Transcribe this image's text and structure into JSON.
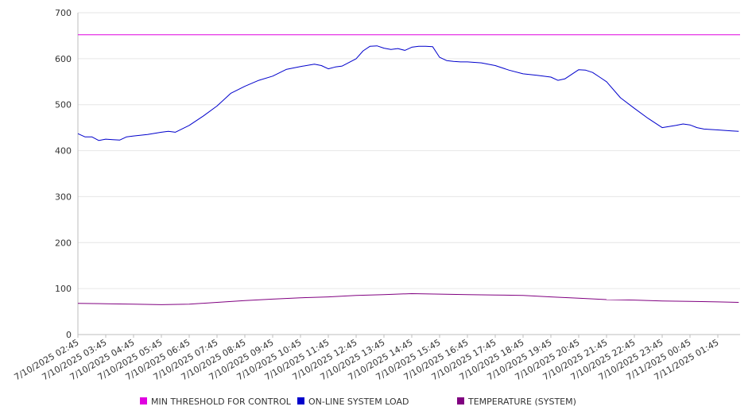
{
  "chart_data": {
    "type": "line",
    "y_ticks": [
      0,
      100,
      200,
      300,
      400,
      500,
      600,
      700
    ],
    "ylim": [
      0,
      700
    ],
    "x_tick_labels": [
      "7/10/2025 02:45",
      "7/10/2025 03:45",
      "7/10/2025 04:45",
      "7/10/2025 05:45",
      "7/10/2025 06:45",
      "7/10/2025 07:45",
      "7/10/2025 08:45",
      "7/10/2025 09:45",
      "7/10/2025 10:45",
      "7/10/2025 11:45",
      "7/10/2025 12:45",
      "7/10/2025 13:45",
      "7/10/2025 14:45",
      "7/10/2025 15:45",
      "7/10/2025 16:45",
      "7/10/2025 17:45",
      "7/10/2025 18:45",
      "7/10/2025 19:45",
      "7/10/2025 20:45",
      "7/10/2025 21:45",
      "7/10/2025 22:45",
      "7/10/2025 23:45",
      "7/11/2025 00:45",
      "7/11/2025 01:45"
    ],
    "grid": true,
    "legend_position": "bottom",
    "series": [
      {
        "name": "MIN THRESHOLD FOR CONTROL",
        "color": "#e000e0",
        "x": [
          "7/10/2025 02:45",
          "7/10/2025 03:45",
          "7/10/2025 04:45",
          "7/10/2025 05:45",
          "7/10/2025 06:45",
          "7/10/2025 07:45",
          "7/10/2025 08:45",
          "7/10/2025 09:45",
          "7/10/2025 10:45",
          "7/10/2025 11:45",
          "7/10/2025 12:45",
          "7/10/2025 13:45",
          "7/10/2025 14:45",
          "7/10/2025 15:45",
          "7/10/2025 16:45",
          "7/10/2025 17:45",
          "7/10/2025 18:45",
          "7/10/2025 19:45",
          "7/10/2025 20:45",
          "7/10/2025 21:45",
          "7/10/2025 22:45",
          "7/10/2025 23:45",
          "7/11/2025 00:45",
          "7/11/2025 01:45",
          "7/11/2025 02:45"
        ],
        "values": [
          652,
          652,
          652,
          652,
          652,
          652,
          652,
          652,
          652,
          652,
          652,
          652,
          652,
          652,
          652,
          652,
          652,
          652,
          652,
          652,
          652,
          652,
          652,
          652,
          652
        ]
      },
      {
        "name": "ON-LINE SYSTEM LOAD",
        "color": "#0000cc",
        "x": [
          "7/10/2025 02:45",
          "7/10/2025 03:00",
          "7/10/2025 03:15",
          "7/10/2025 03:30",
          "7/10/2025 03:45",
          "7/10/2025 04:00",
          "7/10/2025 04:15",
          "7/10/2025 04:30",
          "7/10/2025 04:45",
          "7/10/2025 05:15",
          "7/10/2025 05:45",
          "7/10/2025 06:00",
          "7/10/2025 06:15",
          "7/10/2025 06:45",
          "7/10/2025 07:15",
          "7/10/2025 07:45",
          "7/10/2025 08:15",
          "7/10/2025 08:45",
          "7/10/2025 09:15",
          "7/10/2025 09:45",
          "7/10/2025 10:15",
          "7/10/2025 10:45",
          "7/10/2025 11:15",
          "7/10/2025 11:30",
          "7/10/2025 11:45",
          "7/10/2025 12:00",
          "7/10/2025 12:15",
          "7/10/2025 12:45",
          "7/10/2025 13:00",
          "7/10/2025 13:15",
          "7/10/2025 13:30",
          "7/10/2025 13:45",
          "7/10/2025 14:00",
          "7/10/2025 14:15",
          "7/10/2025 14:30",
          "7/10/2025 14:45",
          "7/10/2025 15:00",
          "7/10/2025 15:15",
          "7/10/2025 15:30",
          "7/10/2025 15:45",
          "7/10/2025 16:00",
          "7/10/2025 16:15",
          "7/10/2025 16:30",
          "7/10/2025 16:45",
          "7/10/2025 17:00",
          "7/10/2025 17:15",
          "7/10/2025 17:45",
          "7/10/2025 18:15",
          "7/10/2025 18:45",
          "7/10/2025 19:15",
          "7/10/2025 19:45",
          "7/10/2025 20:00",
          "7/10/2025 20:15",
          "7/10/2025 20:45",
          "7/10/2025 21:00",
          "7/10/2025 21:15",
          "7/10/2025 21:30",
          "7/10/2025 21:45",
          "7/10/2025 22:15",
          "7/10/2025 22:45",
          "7/10/2025 23:15",
          "7/10/2025 23:45",
          "7/11/2025 00:15",
          "7/11/2025 00:30",
          "7/11/2025 00:45",
          "7/11/2025 01:00",
          "7/11/2025 01:15",
          "7/11/2025 01:45",
          "7/11/2025 02:15",
          "7/11/2025 02:30"
        ],
        "values": [
          437,
          430,
          430,
          422,
          425,
          424,
          423,
          430,
          432,
          435,
          440,
          442,
          440,
          455,
          475,
          497,
          525,
          540,
          553,
          562,
          577,
          583,
          588,
          585,
          578,
          582,
          584,
          600,
          617,
          627,
          628,
          623,
          620,
          622,
          618,
          625,
          627,
          627,
          626,
          603,
          596,
          594,
          593,
          593,
          592,
          591,
          585,
          575,
          567,
          564,
          560,
          553,
          556,
          576,
          575,
          570,
          560,
          550,
          515,
          492,
          470,
          450,
          455,
          458,
          456,
          450,
          447,
          445,
          443,
          442
        ]
      },
      {
        "name": "TEMPERATURE (SYSTEM)",
        "color": "#800080",
        "x": [
          "7/10/2025 02:45",
          "7/10/2025 03:45",
          "7/10/2025 04:45",
          "7/10/2025 05:45",
          "7/10/2025 06:45",
          "7/10/2025 07:45",
          "7/10/2025 08:45",
          "7/10/2025 09:45",
          "7/10/2025 10:45",
          "7/10/2025 11:45",
          "7/10/2025 12:45",
          "7/10/2025 13:45",
          "7/10/2025 14:45",
          "7/10/2025 15:45",
          "7/10/2025 16:45",
          "7/10/2025 17:45",
          "7/10/2025 18:45",
          "7/10/2025 19:45",
          "7/10/2025 20:45",
          "7/10/2025 21:45",
          "7/10/2025 22:45",
          "7/10/2025 23:45",
          "7/11/2025 00:45",
          "7/11/2025 01:45",
          "7/11/2025 02:30"
        ],
        "values": [
          68,
          67,
          66,
          65,
          66,
          70,
          74,
          77,
          80,
          82,
          85,
          87,
          89,
          88,
          87,
          86,
          85,
          82,
          79,
          76,
          75,
          73,
          72,
          71,
          70
        ]
      }
    ]
  }
}
